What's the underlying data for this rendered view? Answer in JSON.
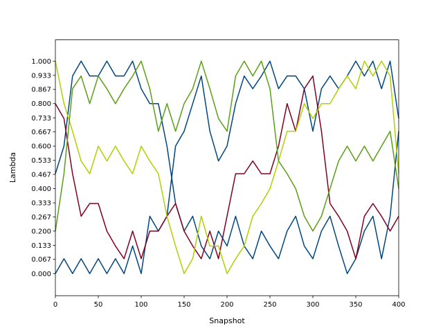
{
  "chart_data": {
    "type": "line",
    "title": "",
    "xlabel": "Snapshot",
    "ylabel": "Lambda",
    "xlim": [
      0,
      400
    ],
    "ylim": [
      -0.104,
      1.1
    ],
    "grid": false,
    "x_ticks": [
      "0",
      "50",
      "100",
      "150",
      "200",
      "250",
      "300",
      "350",
      "400"
    ],
    "y_ticks": [
      "0.000",
      "0.067",
      "0.133",
      "0.200",
      "0.267",
      "0.333",
      "0.400",
      "0.467",
      "0.533",
      "0.600",
      "0.667",
      "0.733",
      "0.800",
      "0.867",
      "0.933",
      "1.000"
    ],
    "x": [
      0,
      10,
      20,
      30,
      40,
      50,
      60,
      70,
      80,
      90,
      100,
      110,
      120,
      130,
      140,
      150,
      160,
      170,
      180,
      190,
      200,
      210,
      220,
      230,
      240,
      250,
      260,
      270,
      280,
      290,
      300,
      310,
      320,
      330,
      340,
      350,
      360,
      370,
      380,
      390,
      400
    ],
    "series": [
      {
        "color": "#00457f",
        "values": [
          0.47,
          0.6,
          0.93,
          1.0,
          0.93,
          0.93,
          1.0,
          0.93,
          0.93,
          1.0,
          0.87,
          0.8,
          0.8,
          0.6,
          0.33,
          0.2,
          0.27,
          0.13,
          0.07,
          0.2,
          0.13,
          0.27,
          0.13,
          0.07,
          0.2,
          0.13,
          0.07,
          0.2,
          0.27,
          0.13,
          0.07,
          0.2,
          0.27,
          0.13,
          0.0,
          0.07,
          0.2,
          0.27,
          0.07,
          0.27,
          0.67
        ]
      },
      {
        "color": "#00457f",
        "values": [
          0.0,
          0.07,
          0.0,
          0.07,
          0.0,
          0.07,
          0.0,
          0.07,
          0.0,
          0.13,
          0.0,
          0.27,
          0.2,
          0.27,
          0.6,
          0.67,
          0.8,
          0.93,
          0.67,
          0.53,
          0.6,
          0.8,
          0.93,
          0.87,
          0.93,
          1.0,
          0.87,
          0.93,
          0.93,
          0.87,
          0.67,
          0.87,
          0.93,
          0.87,
          0.93,
          1.0,
          0.93,
          1.0,
          0.87,
          1.0,
          0.73
        ]
      },
      {
        "color": "#7f0020",
        "values": [
          0.8,
          0.73,
          0.47,
          0.27,
          0.33,
          0.33,
          0.2,
          0.13,
          0.07,
          0.2,
          0.07,
          0.2,
          0.2,
          0.27,
          0.33,
          0.2,
          0.13,
          0.07,
          0.2,
          0.07,
          0.27,
          0.47,
          0.47,
          0.53,
          0.47,
          0.47,
          0.6,
          0.8,
          0.67,
          0.87,
          0.93,
          0.67,
          0.33,
          0.27,
          0.2,
          0.07,
          0.27,
          0.33,
          0.27,
          0.2,
          0.27
        ]
      },
      {
        "color": "#b0d000",
        "values": [
          1.0,
          0.8,
          0.67,
          0.53,
          0.47,
          0.6,
          0.53,
          0.6,
          0.53,
          0.47,
          0.6,
          0.53,
          0.47,
          0.27,
          0.13,
          0.0,
          0.07,
          0.27,
          0.13,
          0.13,
          0.0,
          0.07,
          0.13,
          0.27,
          0.33,
          0.4,
          0.53,
          0.67,
          0.67,
          0.8,
          0.73,
          0.8,
          0.8,
          0.87,
          0.93,
          0.87,
          1.0,
          0.93,
          1.0,
          0.93,
          0.47
        ]
      },
      {
        "color": "#5a9e14",
        "values": [
          0.2,
          0.47,
          0.87,
          0.93,
          0.8,
          0.93,
          0.87,
          0.8,
          0.87,
          0.93,
          1.0,
          0.87,
          0.67,
          0.8,
          0.67,
          0.8,
          0.87,
          1.0,
          0.87,
          0.73,
          0.67,
          0.93,
          1.0,
          0.93,
          1.0,
          0.87,
          0.53,
          0.47,
          0.4,
          0.27,
          0.2,
          0.27,
          0.4,
          0.53,
          0.6,
          0.53,
          0.6,
          0.53,
          0.6,
          0.67,
          0.4
        ]
      }
    ]
  }
}
